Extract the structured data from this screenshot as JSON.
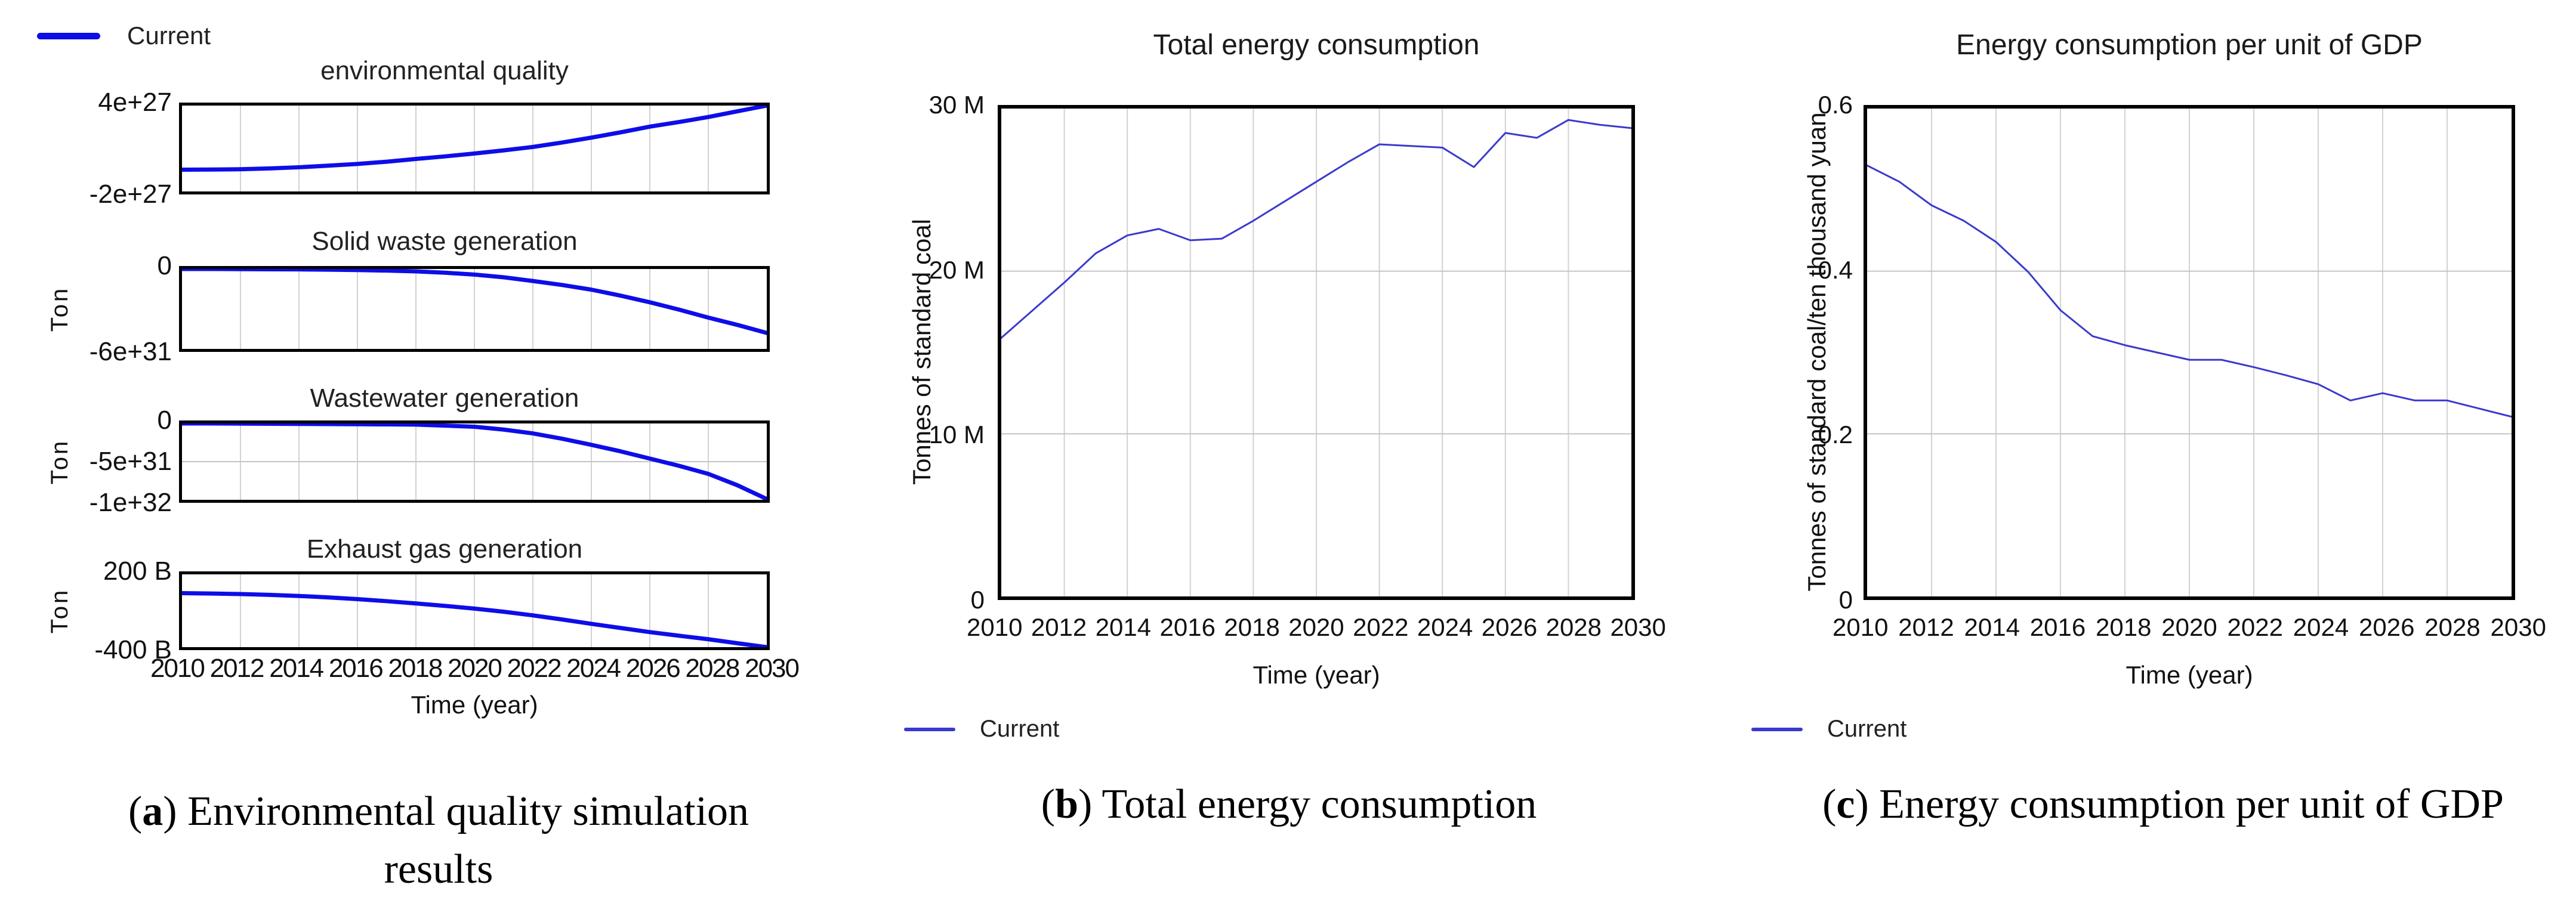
{
  "legend": {
    "label": "Current"
  },
  "colors": {
    "line_a": "#0d0de8",
    "line_bc": "#3a3acc",
    "grid_v": "#d2d2d2",
    "grid_h": "#c4c4c4",
    "border": "#000000"
  },
  "panel_a": {
    "x_label": "Time (year)",
    "x_ticks": [
      "2010",
      "2012",
      "2014",
      "2016",
      "2018",
      "2020",
      "2022",
      "2024",
      "2026",
      "2028",
      "2030"
    ],
    "caption": {
      "open": "(",
      "letter": "a",
      "close": ") ",
      "line1": "Environmental quality simulation",
      "line2": "results"
    }
  },
  "panel_b": {
    "x_label": "Time (year)",
    "x_ticks": [
      "2010",
      "2012",
      "2014",
      "2016",
      "2018",
      "2020",
      "2022",
      "2024",
      "2026",
      "2028",
      "2030"
    ],
    "caption": {
      "open": "(",
      "letter": "b",
      "close": ") ",
      "line1": "Total energy consumption"
    }
  },
  "panel_c": {
    "x_label": "Time (year)",
    "x_ticks": [
      "2010",
      "2012",
      "2014",
      "2016",
      "2018",
      "2020",
      "2022",
      "2024",
      "2026",
      "2028",
      "2030"
    ],
    "caption": {
      "open": "(",
      "letter": "c",
      "close": ") ",
      "line1": "Energy consumption per unit of GDP"
    }
  },
  "chart_data": [
    {
      "type": "line",
      "title": "environmental quality",
      "series_name": "Current",
      "ylabel": "",
      "unit_note": "values in 1e27",
      "x_start": 2010,
      "x_end": 2030,
      "x_step": 1,
      "ylim": [
        -2,
        4
      ],
      "yticks": [
        "4e+27",
        "-2e+27"
      ],
      "xgrid": [
        2012,
        2014,
        2016,
        2018,
        2020,
        2022,
        2024,
        2026,
        2028
      ],
      "ygrid": [],
      "line": "a",
      "line_width": 7,
      "values": [
        -0.48,
        -0.47,
        -0.45,
        -0.39,
        -0.31,
        -0.2,
        -0.08,
        0.08,
        0.27,
        0.45,
        0.65,
        0.87,
        1.11,
        1.42,
        1.76,
        2.13,
        2.53,
        2.85,
        3.2,
        3.6,
        4.0
      ]
    },
    {
      "type": "line",
      "title": "Solid waste generation",
      "series_name": "Current",
      "ylabel": "Ton",
      "unit_note": "values in 1e31",
      "x_start": 2010,
      "x_end": 2030,
      "x_step": 1,
      "ylim": [
        -6,
        0
      ],
      "yticks": [
        "0",
        "-6e+31"
      ],
      "xgrid": [
        2012,
        2014,
        2016,
        2018,
        2020,
        2022,
        2024,
        2026,
        2028
      ],
      "ygrid": [],
      "line": "a",
      "line_width": 7,
      "values": [
        0,
        0,
        -0.01,
        -0.02,
        -0.03,
        -0.05,
        -0.08,
        -0.12,
        -0.18,
        -0.28,
        -0.42,
        -0.62,
        -0.9,
        -1.2,
        -1.55,
        -2.0,
        -2.5,
        -3.05,
        -3.65,
        -4.2,
        -4.8
      ]
    },
    {
      "type": "line",
      "title": "Wastewater generation",
      "series_name": "Current",
      "ylabel": "Ton",
      "unit_note": "values in 1e31",
      "x_start": 2010,
      "x_end": 2030,
      "x_step": 1,
      "ylim": [
        -10,
        0
      ],
      "yticks": [
        "0",
        "-5e+31",
        "-1e+32"
      ],
      "xgrid": [
        2012,
        2014,
        2016,
        2018,
        2020,
        2022,
        2024,
        2026,
        2028
      ],
      "ygrid": [
        -5
      ],
      "line": "a",
      "line_width": 7,
      "values": [
        0,
        0,
        -0.02,
        -0.04,
        -0.06,
        -0.08,
        -0.1,
        -0.12,
        -0.15,
        -0.28,
        -0.43,
        -0.8,
        -1.3,
        -2.0,
        -2.8,
        -3.65,
        -4.6,
        -5.55,
        -6.6,
        -8.1,
        -9.9
      ]
    },
    {
      "type": "line",
      "title": "Exhaust gas generation",
      "series_name": "Current",
      "ylabel": "Ton",
      "unit_note": "values in billions",
      "x_start": 2010,
      "x_end": 2030,
      "x_step": 1,
      "ylim": [
        -400,
        200
      ],
      "yticks": [
        "200 B",
        "-400 B"
      ],
      "xgrid": [
        2012,
        2014,
        2016,
        2018,
        2020,
        2022,
        2024,
        2026,
        2028
      ],
      "ygrid": [],
      "line": "a",
      "line_width": 7,
      "values": [
        45,
        42,
        38,
        31,
        22,
        10,
        -4,
        -21,
        -40,
        -60,
        -82,
        -108,
        -138,
        -172,
        -208,
        -242,
        -276,
        -306,
        -335,
        -368,
        -400
      ]
    },
    {
      "type": "line",
      "title": "Total energy consumption",
      "series_name": "Current",
      "ylabel": "Tonnes of standard coal",
      "unit_note": "values in millions",
      "x_start": 2010,
      "x_end": 2030,
      "x_step": 1,
      "ylim": [
        0,
        30
      ],
      "yticks": [
        "30 M",
        "20 M",
        "10 M",
        "0"
      ],
      "xgrid": [
        2012,
        2014,
        2016,
        2018,
        2020,
        2022,
        2024,
        2026,
        2028
      ],
      "ygrid": [
        10,
        20
      ],
      "line": "bc",
      "line_width": 3,
      "values": [
        15.9,
        17.6,
        19.3,
        21.1,
        22.2,
        22.6,
        21.9,
        22.0,
        23.1,
        24.3,
        25.5,
        26.7,
        27.8,
        27.7,
        27.6,
        26.4,
        28.5,
        28.2,
        29.3,
        29.0,
        28.8
      ]
    },
    {
      "type": "line",
      "title": "Energy consumption per unit of GDP",
      "series_name": "Current",
      "ylabel": "Tonnes of standard coal/ten thousand yuan",
      "x_start": 2010,
      "x_end": 2030,
      "x_step": 1,
      "ylim": [
        0,
        0.6
      ],
      "yticks": [
        "0.6",
        "0.4",
        "0.2",
        "0"
      ],
      "xgrid": [
        2012,
        2014,
        2016,
        2018,
        2020,
        2022,
        2024,
        2026,
        2028
      ],
      "ygrid": [
        0.2,
        0.4
      ],
      "line": "bc",
      "line_width": 3,
      "values": [
        0.53,
        0.51,
        0.481,
        0.462,
        0.436,
        0.399,
        0.352,
        0.32,
        0.309,
        0.3,
        0.291,
        0.291,
        0.282,
        0.272,
        0.261,
        0.241,
        0.25,
        0.241,
        0.241,
        0.231,
        0.221
      ]
    }
  ]
}
